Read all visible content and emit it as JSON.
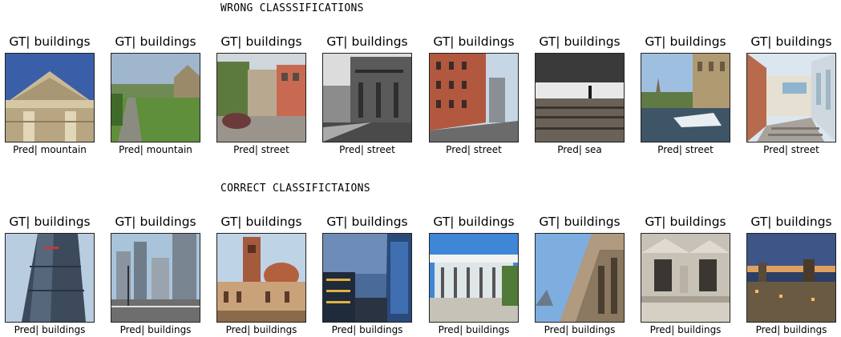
{
  "wrong_title": "WRONG CLASSSIFICATIONS",
  "correct_title": "CORRECT CLASSIFICTAIONS",
  "wrong": [
    {
      "gt": "GT| buildings",
      "pred": "Pred| mountain"
    },
    {
      "gt": "GT| buildings",
      "pred": "Pred| mountain"
    },
    {
      "gt": "GT| buildings",
      "pred": "Pred| street"
    },
    {
      "gt": "GT| buildings",
      "pred": "Pred| street"
    },
    {
      "gt": "GT| buildings",
      "pred": "Pred| street"
    },
    {
      "gt": "GT| buildings",
      "pred": "Pred| sea"
    },
    {
      "gt": "GT| buildings",
      "pred": "Pred| street"
    },
    {
      "gt": "GT| buildings",
      "pred": "Pred| street"
    }
  ],
  "correct": [
    {
      "gt": "GT| buildings",
      "pred": "Pred| buildings"
    },
    {
      "gt": "GT| buildings",
      "pred": "Pred| buildings"
    },
    {
      "gt": "GT| buildings",
      "pred": "Pred| buildings"
    },
    {
      "gt": "GT| buildings",
      "pred": "Pred| buildings"
    },
    {
      "gt": "GT| buildings",
      "pred": "Pred| buildings"
    },
    {
      "gt": "GT| buildings",
      "pred": "Pred| buildings"
    },
    {
      "gt": "GT| buildings",
      "pred": "Pred| buildings"
    },
    {
      "gt": "GT| buildings",
      "pred": "Pred| buildings"
    }
  ]
}
